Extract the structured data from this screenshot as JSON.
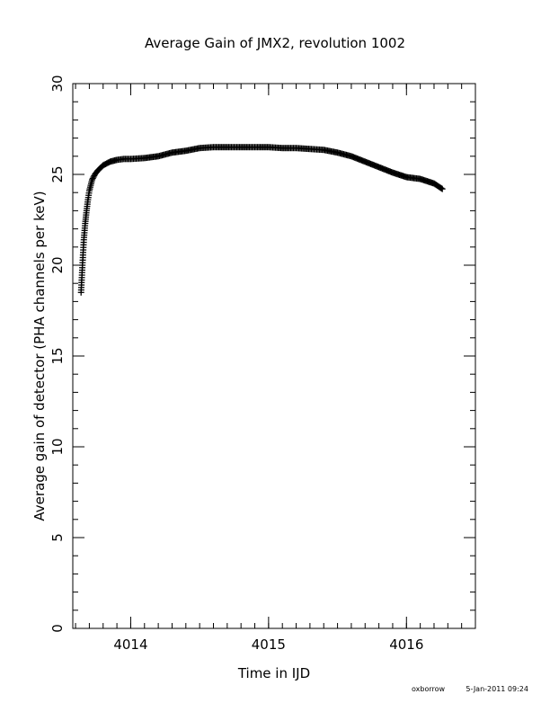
{
  "chart_data": {
    "type": "scatter",
    "title": "Average Gain of JMX2, revolution 1002",
    "xlabel": "Time in IJD",
    "ylabel": "Average gain of detector (PHA channels per keV)",
    "xlim": [
      4013.58,
      4016.5
    ],
    "ylim": [
      0,
      30
    ],
    "x_major_ticks": [
      4014,
      4015,
      4016
    ],
    "x_tick_labels": [
      "4014",
      "4015",
      "4016"
    ],
    "x_minor_step": 0.1,
    "y_major_ticks": [
      0,
      5,
      10,
      15,
      20,
      25,
      30
    ],
    "y_tick_labels": [
      "0",
      "5",
      "10",
      "15",
      "20",
      "25",
      "30"
    ],
    "y_minor_step": 1,
    "marker": "plus",
    "grid": false,
    "legend": "none",
    "series": [
      {
        "x": [
          4013.64,
          4013.65,
          4013.66,
          4013.67,
          4013.68,
          4013.69,
          4013.7,
          4013.72,
          4013.74,
          4013.76,
          4013.78,
          4013.8,
          4013.85,
          4013.9,
          4013.95,
          4014.0,
          4014.1,
          4014.2,
          4014.3,
          4014.4,
          4014.5,
          4014.6,
          4014.7,
          4014.8,
          4014.9,
          4015.0,
          4015.1,
          4015.2,
          4015.3,
          4015.4,
          4015.5,
          4015.6,
          4015.7,
          4015.8,
          4015.9,
          4016.0,
          4016.1,
          4016.2,
          4016.26
        ],
        "y": [
          18.5,
          20.0,
          21.4,
          22.3,
          23.0,
          23.6,
          24.1,
          24.7,
          25.0,
          25.2,
          25.35,
          25.5,
          25.7,
          25.8,
          25.85,
          25.85,
          25.9,
          26.0,
          26.2,
          26.3,
          26.45,
          26.5,
          26.5,
          26.5,
          26.5,
          26.5,
          26.45,
          26.45,
          26.4,
          26.35,
          26.2,
          26.0,
          25.7,
          25.4,
          25.1,
          24.85,
          24.75,
          24.5,
          24.2
        ]
      }
    ]
  },
  "footer": {
    "user": "oxborrow",
    "timestamp": "5-Jan-2011 09:24"
  }
}
